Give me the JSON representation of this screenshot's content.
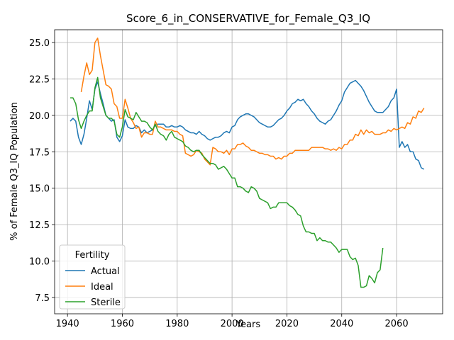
{
  "chart_data": {
    "type": "line",
    "title": "Score_6_in_CONSERVATIVE_for_Female_Q3_IQ",
    "x_label": "Years",
    "y_label": "% of Female Q3_IQ Population",
    "legend_title": "Fertility",
    "legend_position": "lower left",
    "grid": true,
    "xlim": [
      1935.3,
      2076.8
    ],
    "ylim": [
      6.38,
      25.875
    ],
    "xticks": [
      1940,
      1960,
      1980,
      2000,
      2020,
      2040,
      2060
    ],
    "yticks": [
      7.5,
      {
        "value": 10,
        "label": "10.0"
      },
      12.5,
      {
        "value": 15,
        "label": "15.0"
      },
      17.5,
      {
        "value": 20,
        "label": "20.0"
      },
      22.5,
      {
        "value": 25,
        "label": "25.0"
      }
    ],
    "x": [
      1941,
      1942,
      1943,
      1944,
      1945,
      1946,
      1947,
      1948,
      1949,
      1950,
      1951,
      1952,
      1953,
      1954,
      1955,
      1956,
      1957,
      1958,
      1959,
      1960,
      1961,
      1962,
      1963,
      1964,
      1965,
      1966,
      1967,
      1968,
      1969,
      1970,
      1971,
      1972,
      1973,
      1974,
      1975,
      1976,
      1977,
      1978,
      1979,
      1980,
      1981,
      1982,
      1983,
      1984,
      1985,
      1986,
      1987,
      1988,
      1989,
      1990,
      1991,
      1992,
      1993,
      1994,
      1995,
      1996,
      1997,
      1998,
      1999,
      2000,
      2001,
      2002,
      2003,
      2004,
      2005,
      2006,
      2007,
      2008,
      2009,
      2010,
      2011,
      2012,
      2013,
      2014,
      2015,
      2016,
      2017,
      2018,
      2019,
      2020,
      2021,
      2022,
      2023,
      2024,
      2025,
      2026,
      2027,
      2028,
      2029,
      2030,
      2031,
      2032,
      2033,
      2034,
      2035,
      2036,
      2037,
      2038,
      2039,
      2040,
      2041,
      2042,
      2043,
      2044,
      2045,
      2046,
      2047,
      2048,
      2049,
      2050,
      2051,
      2052,
      2053,
      2054,
      2055,
      2056,
      2057,
      2058,
      2059,
      2060,
      2061,
      2062,
      2063,
      2064,
      2065,
      2066,
      2067,
      2068,
      2069,
      2070
    ],
    "series": [
      {
        "name": "Actual",
        "color": "#1f77b4",
        "values": [
          19.6,
          19.8,
          19.6,
          18.5,
          18.0,
          18.7,
          19.8,
          21.0,
          20.4,
          21.8,
          22.3,
          21.5,
          20.8,
          20.0,
          19.8,
          19.6,
          19.7,
          18.5,
          18.2,
          18.6,
          19.7,
          19.2,
          19.1,
          19.1,
          19.3,
          19.2,
          18.8,
          19.0,
          18.8,
          18.9,
          19.0,
          19.3,
          19.4,
          19.4,
          19.4,
          19.2,
          19.2,
          19.3,
          19.2,
          19.2,
          19.3,
          19.2,
          19.0,
          18.9,
          18.8,
          18.8,
          18.7,
          18.9,
          18.7,
          18.6,
          18.4,
          18.3,
          18.4,
          18.5,
          18.5,
          18.6,
          18.8,
          18.9,
          18.8,
          19.2,
          19.3,
          19.7,
          19.9,
          20.0,
          20.1,
          20.1,
          20.0,
          19.9,
          19.7,
          19.5,
          19.4,
          19.3,
          19.2,
          19.2,
          19.3,
          19.5,
          19.7,
          19.8,
          20.0,
          20.3,
          20.5,
          20.8,
          20.9,
          21.1,
          21.0,
          21.1,
          20.8,
          20.6,
          20.3,
          20.1,
          19.8,
          19.6,
          19.5,
          19.4,
          19.6,
          19.7,
          20.0,
          20.3,
          20.7,
          21.0,
          21.6,
          21.9,
          22.2,
          22.3,
          22.4,
          22.2,
          22.0,
          21.7,
          21.3,
          20.9,
          20.6,
          20.3,
          20.2,
          20.2,
          20.2,
          20.4,
          20.6,
          21.0,
          21.2,
          21.8,
          17.8,
          18.2,
          17.8,
          18.0,
          17.5,
          17.5,
          17.0,
          16.9,
          16.4,
          16.3
        ]
      },
      {
        "name": "Ideal",
        "color": "#ff7f0e",
        "values": [
          null,
          null,
          null,
          null,
          21.6,
          22.7,
          23.6,
          22.8,
          23.1,
          25.0,
          25.3,
          24.1,
          23.1,
          22.1,
          22.0,
          21.8,
          20.8,
          20.6,
          19.8,
          19.8,
          21.1,
          20.5,
          19.8,
          19.5,
          19.1,
          19.2,
          18.5,
          18.8,
          18.8,
          18.7,
          18.7,
          19.6,
          19.2,
          19.2,
          19.1,
          19.0,
          19.0,
          19.0,
          18.9,
          18.9,
          18.7,
          18.6,
          17.4,
          17.3,
          17.2,
          17.3,
          17.6,
          17.5,
          17.4,
          17.0,
          16.8,
          16.6,
          17.8,
          17.7,
          17.5,
          17.5,
          17.4,
          17.6,
          17.3,
          17.7,
          17.7,
          18.0,
          18.0,
          18.1,
          17.9,
          17.8,
          17.6,
          17.6,
          17.5,
          17.4,
          17.4,
          17.3,
          17.3,
          17.2,
          17.2,
          17.0,
          17.1,
          17.0,
          17.2,
          17.2,
          17.4,
          17.4,
          17.6,
          17.6,
          17.6,
          17.6,
          17.6,
          17.6,
          17.8,
          17.8,
          17.8,
          17.8,
          17.8,
          17.7,
          17.7,
          17.6,
          17.7,
          17.6,
          17.8,
          17.7,
          18.0,
          18.0,
          18.3,
          18.3,
          18.7,
          18.6,
          19.0,
          18.7,
          19.0,
          18.8,
          18.9,
          18.7,
          18.7,
          18.7,
          18.8,
          18.8,
          19.0,
          18.9,
          19.1,
          19.0,
          19.1,
          19.2,
          19.1,
          19.5,
          19.4,
          19.9,
          19.8,
          20.3,
          20.2,
          20.5
        ]
      },
      {
        "name": "Sterile",
        "color": "#2ca02c",
        "values": [
          21.2,
          21.2,
          20.8,
          19.7,
          19.1,
          19.6,
          20.0,
          20.3,
          20.3,
          21.9,
          22.6,
          21.2,
          20.6,
          20.0,
          19.8,
          19.8,
          19.6,
          18.7,
          18.5,
          19.2,
          20.4,
          19.9,
          19.8,
          19.7,
          20.2,
          19.9,
          19.6,
          19.6,
          19.5,
          19.2,
          19.0,
          19.4,
          18.9,
          18.7,
          18.6,
          18.3,
          18.7,
          18.9,
          18.5,
          18.4,
          18.3,
          18.2,
          17.9,
          17.8,
          17.6,
          17.5,
          17.6,
          17.6,
          17.3,
          17.1,
          16.9,
          16.7,
          16.7,
          16.6,
          16.3,
          16.4,
          16.5,
          16.3,
          16.0,
          15.7,
          15.7,
          15.1,
          15.1,
          15.0,
          14.8,
          14.7,
          15.1,
          15.0,
          14.8,
          14.3,
          14.2,
          14.1,
          14.0,
          13.6,
          13.7,
          13.7,
          14.0,
          14.0,
          14.0,
          14.0,
          13.8,
          13.7,
          13.5,
          13.2,
          13.1,
          12.4,
          12.0,
          12.0,
          11.9,
          11.9,
          11.4,
          11.6,
          11.4,
          11.4,
          11.3,
          11.3,
          11.1,
          10.9,
          10.6,
          10.8,
          10.8,
          10.8,
          10.3,
          10.1,
          10.2,
          9.7,
          8.2,
          8.2,
          8.3,
          9.0,
          8.8,
          8.5,
          9.2,
          9.4,
          10.9,
          null,
          null,
          null,
          null,
          null,
          null,
          null,
          null,
          null,
          null,
          null,
          null,
          null,
          null,
          null
        ]
      }
    ]
  }
}
